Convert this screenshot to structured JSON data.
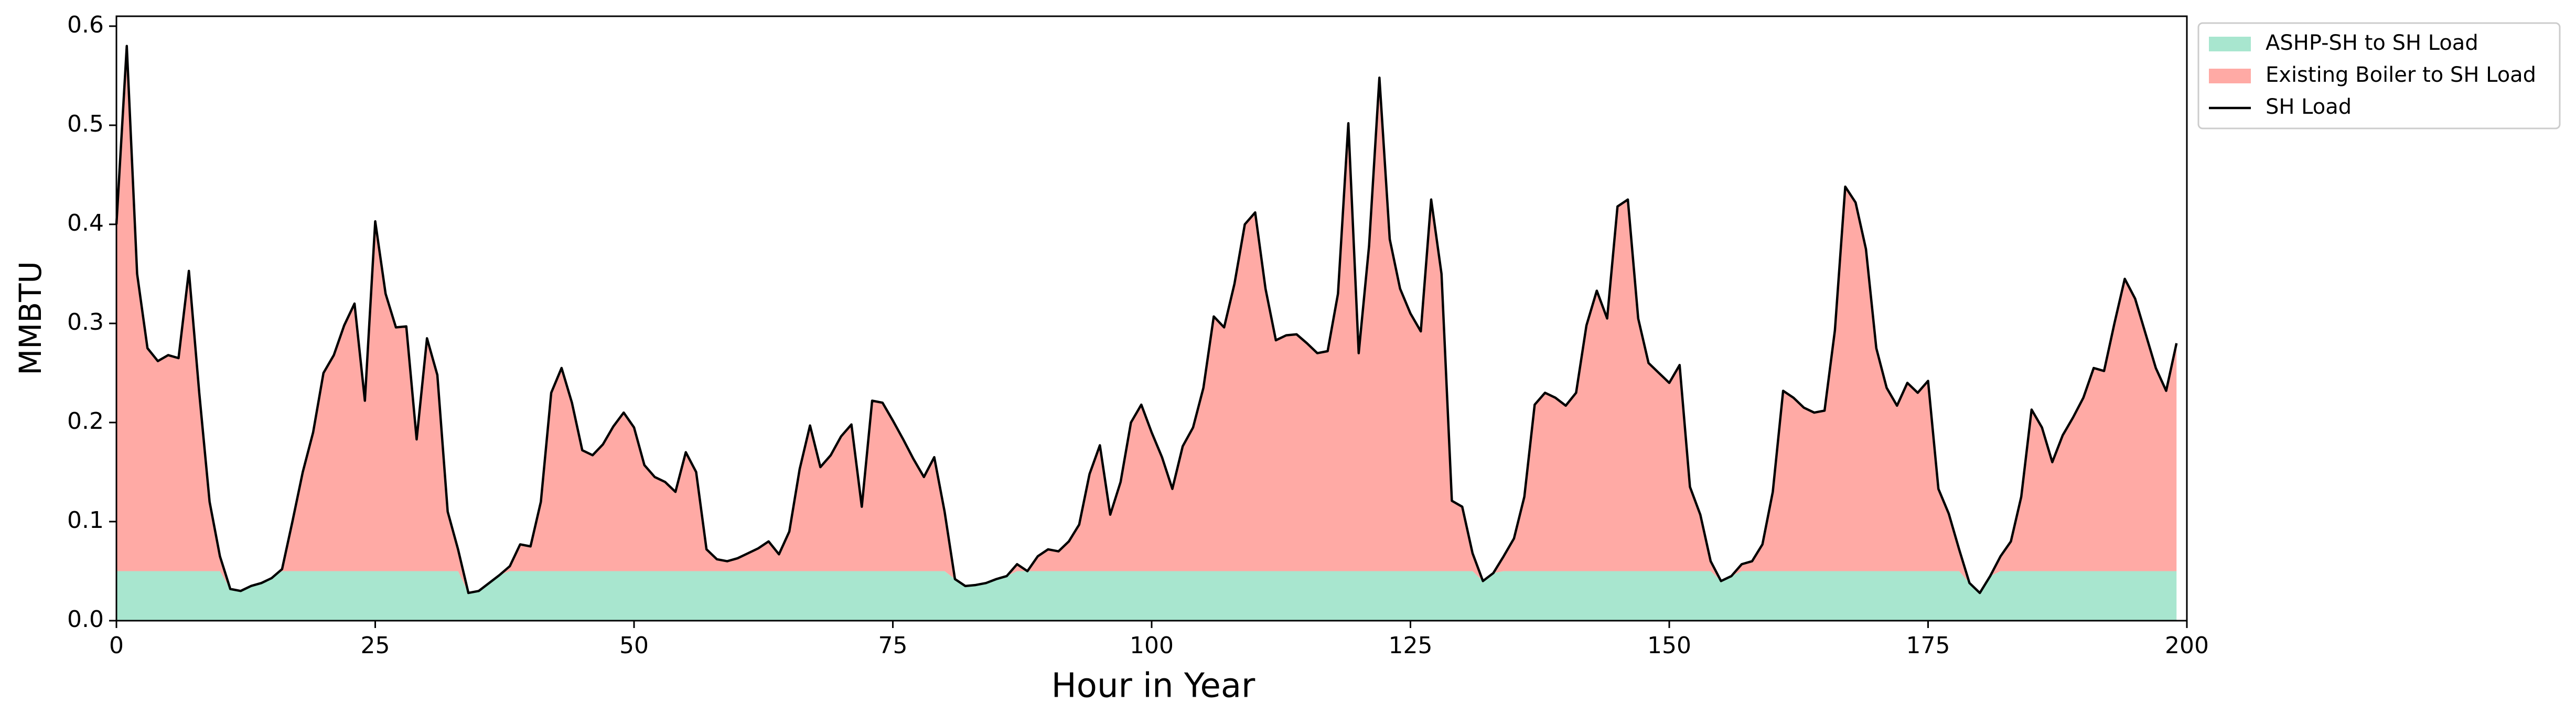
{
  "chart_data": {
    "type": "area",
    "stacked": true,
    "x_label": "Hour in Year",
    "y_label": "MMBTU",
    "xlim": [
      0,
      200
    ],
    "xticks": [
      0,
      25,
      50,
      75,
      100,
      125,
      150,
      175,
      200
    ],
    "ylim": [
      0,
      0.61
    ],
    "yticks": [
      {
        "value": 0,
        "label": "0.0"
      },
      0.1,
      0.2,
      0.3,
      0.4,
      0.5,
      0.6
    ],
    "legend": "outside right",
    "grid": false,
    "x": [
      0,
      1,
      2,
      3,
      4,
      5,
      6,
      7,
      8,
      9,
      10,
      11,
      12,
      13,
      14,
      15,
      16,
      17,
      18,
      19,
      20,
      21,
      22,
      23,
      24,
      25,
      26,
      27,
      28,
      29,
      30,
      31,
      32,
      33,
      34,
      35,
      36,
      37,
      38,
      39,
      40,
      41,
      42,
      43,
      44,
      45,
      46,
      47,
      48,
      49,
      50,
      51,
      52,
      53,
      54,
      55,
      56,
      57,
      58,
      59,
      60,
      61,
      62,
      63,
      64,
      65,
      66,
      67,
      68,
      69,
      70,
      71,
      72,
      73,
      74,
      75,
      76,
      77,
      78,
      79,
      80,
      81,
      82,
      83,
      84,
      85,
      86,
      87,
      88,
      89,
      90,
      91,
      92,
      93,
      94,
      95,
      96,
      97,
      98,
      99,
      100,
      101,
      102,
      103,
      104,
      105,
      106,
      107,
      108,
      109,
      110,
      111,
      112,
      113,
      114,
      115,
      116,
      117,
      118,
      119,
      120,
      121,
      122,
      123,
      124,
      125,
      126,
      127,
      128,
      129,
      130,
      131,
      132,
      133,
      134,
      135,
      136,
      137,
      138,
      139,
      140,
      141,
      142,
      143,
      144,
      145,
      146,
      147,
      148,
      149,
      150,
      151,
      152,
      153,
      154,
      155,
      156,
      157,
      158,
      159,
      160,
      161,
      162,
      163,
      164,
      165,
      166,
      167,
      168,
      169,
      170,
      171,
      172,
      173,
      174,
      175,
      176,
      177,
      178,
      179,
      180,
      181,
      182,
      183,
      184,
      185,
      186,
      187,
      188,
      189,
      190,
      191,
      192,
      193,
      194,
      195,
      196,
      197,
      198,
      199
    ],
    "series": [
      {
        "name": "ASHP-SH to SH Load",
        "color": "#a8e6cf",
        "kind": "area",
        "values": [
          0.05,
          0.05,
          0.05,
          0.05,
          0.05,
          0.05,
          0.05,
          0.05,
          0.05,
          0.05,
          0.05,
          0.032,
          0.03,
          0.035,
          0.038,
          0.043,
          0.05,
          0.05,
          0.05,
          0.05,
          0.05,
          0.05,
          0.05,
          0.05,
          0.05,
          0.05,
          0.05,
          0.05,
          0.05,
          0.05,
          0.05,
          0.05,
          0.05,
          0.05,
          0.028,
          0.03,
          0.038,
          0.046,
          0.05,
          0.05,
          0.05,
          0.05,
          0.05,
          0.05,
          0.05,
          0.05,
          0.05,
          0.05,
          0.05,
          0.05,
          0.05,
          0.05,
          0.05,
          0.05,
          0.05,
          0.05,
          0.05,
          0.05,
          0.05,
          0.05,
          0.05,
          0.05,
          0.05,
          0.05,
          0.05,
          0.05,
          0.05,
          0.05,
          0.05,
          0.05,
          0.05,
          0.05,
          0.05,
          0.05,
          0.05,
          0.05,
          0.05,
          0.05,
          0.05,
          0.05,
          0.05,
          0.042,
          0.035,
          0.036,
          0.038,
          0.042,
          0.045,
          0.05,
          0.05,
          0.05,
          0.05,
          0.05,
          0.05,
          0.05,
          0.05,
          0.05,
          0.05,
          0.05,
          0.05,
          0.05,
          0.05,
          0.05,
          0.05,
          0.05,
          0.05,
          0.05,
          0.05,
          0.05,
          0.05,
          0.05,
          0.05,
          0.05,
          0.05,
          0.05,
          0.05,
          0.05,
          0.05,
          0.05,
          0.05,
          0.05,
          0.05,
          0.05,
          0.05,
          0.05,
          0.05,
          0.05,
          0.05,
          0.05,
          0.05,
          0.05,
          0.05,
          0.05,
          0.04,
          0.048,
          0.05,
          0.05,
          0.05,
          0.05,
          0.05,
          0.05,
          0.05,
          0.05,
          0.05,
          0.05,
          0.05,
          0.05,
          0.05,
          0.05,
          0.05,
          0.05,
          0.05,
          0.05,
          0.05,
          0.05,
          0.05,
          0.04,
          0.045,
          0.05,
          0.05,
          0.05,
          0.05,
          0.05,
          0.05,
          0.05,
          0.05,
          0.05,
          0.05,
          0.05,
          0.05,
          0.05,
          0.05,
          0.05,
          0.05,
          0.05,
          0.05,
          0.05,
          0.05,
          0.05,
          0.05,
          0.038,
          0.028,
          0.045,
          0.05,
          0.05,
          0.05,
          0.05,
          0.05,
          0.05,
          0.05,
          0.05,
          0.05,
          0.05,
          0.05,
          0.05,
          0.05,
          0.05,
          0.05,
          0.05,
          0.05,
          0.05
        ]
      },
      {
        "name": "Existing Boiler to SH Load",
        "color": "#ffaaa5",
        "kind": "area",
        "values": [
          0.35,
          0.53,
          0.3,
          0.225,
          0.212,
          0.218,
          0.215,
          0.303,
          0.18,
          0.07,
          0.015,
          0,
          0,
          0,
          0,
          0,
          0.002,
          0.05,
          0.1,
          0.14,
          0.2,
          0.218,
          0.248,
          0.27,
          0.172,
          0.353,
          0.28,
          0.246,
          0.247,
          0.133,
          0.235,
          0.198,
          0.06,
          0.022,
          0,
          0,
          0,
          0,
          0.005,
          0.027,
          0.025,
          0.07,
          0.18,
          0.205,
          0.17,
          0.122,
          0.117,
          0.128,
          0.146,
          0.16,
          0.145,
          0.107,
          0.095,
          0.09,
          0.08,
          0.12,
          0.1,
          0.022,
          0.012,
          0.01,
          0.013,
          0.018,
          0.023,
          0.03,
          0.017,
          0.04,
          0.103,
          0.147,
          0.105,
          0.117,
          0.136,
          0.148,
          0.065,
          0.172,
          0.17,
          0.152,
          0.133,
          0.113,
          0.095,
          0.115,
          0.06,
          0,
          0,
          0,
          0,
          0,
          0,
          0.007,
          0,
          0.015,
          0.022,
          0.02,
          0.03,
          0.047,
          0.098,
          0.127,
          0.057,
          0.09,
          0.15,
          0.168,
          0.14,
          0.115,
          0.083,
          0.126,
          0.145,
          0.185,
          0.257,
          0.246,
          0.29,
          0.35,
          0.362,
          0.285,
          0.233,
          0.238,
          0.239,
          0.23,
          0.22,
          0.222,
          0.28,
          0.452,
          0.22,
          0.328,
          0.498,
          0.335,
          0.285,
          0.26,
          0.242,
          0.375,
          0.3,
          0.071,
          0.065,
          0.018,
          0,
          0,
          0.015,
          0.033,
          0.075,
          0.168,
          0.18,
          0.175,
          0.167,
          0.18,
          0.248,
          0.283,
          0.255,
          0.368,
          0.375,
          0.255,
          0.21,
          0.2,
          0.19,
          0.208,
          0.085,
          0.057,
          0.01,
          0,
          0,
          0.007,
          0.01,
          0.027,
          0.08,
          0.182,
          0.175,
          0.165,
          0.16,
          0.162,
          0.243,
          0.388,
          0.372,
          0.325,
          0.225,
          0.185,
          0.167,
          0.19,
          0.18,
          0.192,
          0.083,
          0.058,
          0.022,
          0,
          0,
          0,
          0.015,
          0.03,
          0.075,
          0.163,
          0.145,
          0.11,
          0.137,
          0.155,
          0.175,
          0.205,
          0.202,
          0.25,
          0.295,
          0.275,
          0.24,
          0.205,
          0.182,
          0.23
        ]
      },
      {
        "name": "SH Load",
        "color": "#000000",
        "kind": "line",
        "values": [
          0.4,
          0.58,
          0.35,
          0.275,
          0.262,
          0.268,
          0.265,
          0.353,
          0.23,
          0.12,
          0.065,
          0.032,
          0.03,
          0.035,
          0.038,
          0.043,
          0.052,
          0.1,
          0.15,
          0.19,
          0.25,
          0.268,
          0.298,
          0.32,
          0.222,
          0.403,
          0.33,
          0.296,
          0.297,
          0.183,
          0.285,
          0.248,
          0.11,
          0.072,
          0.028,
          0.03,
          0.038,
          0.046,
          0.055,
          0.077,
          0.075,
          0.12,
          0.23,
          0.255,
          0.22,
          0.172,
          0.167,
          0.178,
          0.196,
          0.21,
          0.195,
          0.157,
          0.145,
          0.14,
          0.13,
          0.17,
          0.15,
          0.072,
          0.062,
          0.06,
          0.063,
          0.068,
          0.073,
          0.08,
          0.067,
          0.09,
          0.153,
          0.197,
          0.155,
          0.167,
          0.186,
          0.198,
          0.115,
          0.222,
          0.22,
          0.202,
          0.183,
          0.163,
          0.145,
          0.165,
          0.11,
          0.042,
          0.035,
          0.036,
          0.038,
          0.042,
          0.045,
          0.057,
          0.05,
          0.065,
          0.072,
          0.07,
          0.08,
          0.097,
          0.148,
          0.177,
          0.107,
          0.14,
          0.2,
          0.218,
          0.19,
          0.165,
          0.133,
          0.176,
          0.195,
          0.235,
          0.307,
          0.296,
          0.34,
          0.4,
          0.412,
          0.335,
          0.283,
          0.288,
          0.289,
          0.28,
          0.27,
          0.272,
          0.33,
          0.502,
          0.27,
          0.378,
          0.548,
          0.385,
          0.335,
          0.31,
          0.292,
          0.425,
          0.35,
          0.121,
          0.115,
          0.068,
          0.04,
          0.048,
          0.065,
          0.083,
          0.125,
          0.218,
          0.23,
          0.225,
          0.217,
          0.23,
          0.298,
          0.333,
          0.305,
          0.418,
          0.425,
          0.305,
          0.26,
          0.25,
          0.24,
          0.258,
          0.135,
          0.107,
          0.06,
          0.04,
          0.045,
          0.057,
          0.06,
          0.077,
          0.13,
          0.232,
          0.225,
          0.215,
          0.21,
          0.212,
          0.293,
          0.438,
          0.422,
          0.375,
          0.275,
          0.235,
          0.217,
          0.24,
          0.23,
          0.242,
          0.133,
          0.108,
          0.072,
          0.038,
          0.028,
          0.045,
          0.065,
          0.08,
          0.125,
          0.213,
          0.195,
          0.16,
          0.187,
          0.205,
          0.225,
          0.255,
          0.252,
          0.3,
          0.345,
          0.325,
          0.29,
          0.255,
          0.232,
          0.28
        ]
      }
    ]
  }
}
